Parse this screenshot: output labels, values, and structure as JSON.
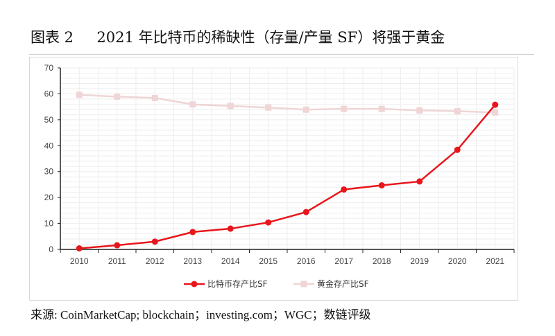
{
  "title": "图表 2     2021 年比特币的稀缺性（存量/产量 SF）将强于黄金",
  "source": "来源: CoinMarketCap; blockchain；investing.com；WGC；数链评级",
  "chart_data": {
    "type": "line",
    "title": "",
    "categories": [
      "2010",
      "2011",
      "2012",
      "2013",
      "2014",
      "2015",
      "2016",
      "2017",
      "2018",
      "2019",
      "2020",
      "2021"
    ],
    "ylim": [
      0,
      70
    ],
    "yticks": [
      0,
      10,
      20,
      30,
      40,
      50,
      60,
      70
    ],
    "grid": true,
    "legend_position": "bottom",
    "series": [
      {
        "name": "比特币存产比SF",
        "color": "#e8161b",
        "marker": "circle",
        "values": [
          0.4,
          1.6,
          3.0,
          6.7,
          8.0,
          10.4,
          14.4,
          23.1,
          24.7,
          26.2,
          38.4,
          55.8
        ]
      },
      {
        "name": "黄金存产比SF",
        "color": "#efd5d5",
        "marker": "square",
        "values": [
          59.6,
          58.9,
          58.4,
          55.9,
          55.3,
          54.7,
          53.9,
          54.2,
          54.2,
          53.6,
          53.3,
          52.8
        ]
      }
    ]
  }
}
